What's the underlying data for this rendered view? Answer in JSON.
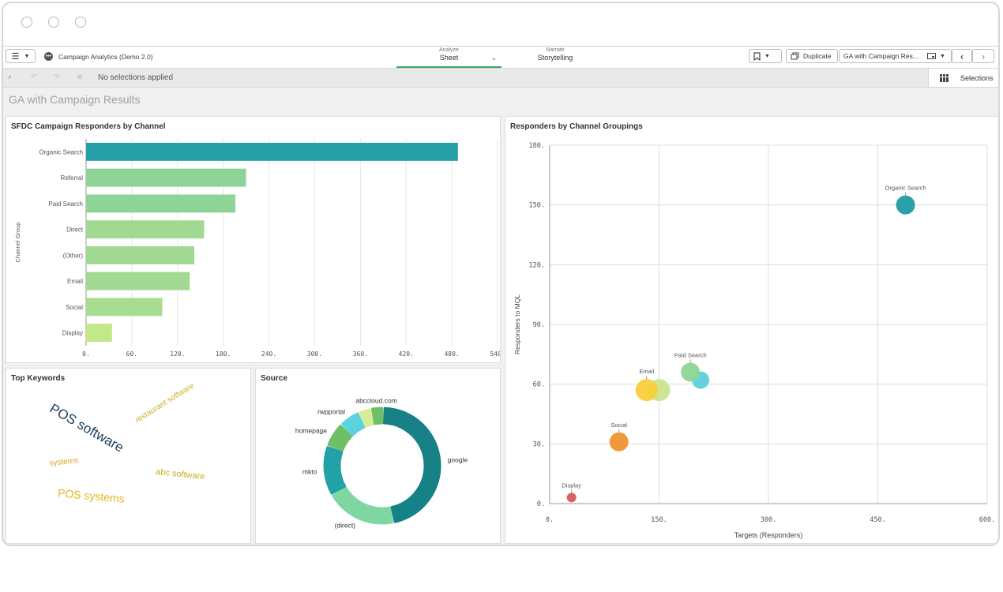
{
  "window": {
    "controls": [
      "close",
      "minimize",
      "maximize"
    ]
  },
  "toolbar": {
    "app_title": "Campaign Analytics (Demo 2.0)",
    "tabs": [
      {
        "small": "Analyze",
        "big": "Sheet"
      },
      {
        "small": "Narrate",
        "big": "Storytelling"
      }
    ],
    "duplicate_label": "Duplicate",
    "sheet_selector": "GA with Campaign Res..."
  },
  "selection_bar": {
    "status": "No selections applied",
    "selections_label": "Selections"
  },
  "sheet": {
    "title": "GA with Campaign Results"
  },
  "bar_panel": {
    "title": "SFDC Campaign Responders by Channel"
  },
  "scatter_panel": {
    "title": "Responders by Channel Groupings"
  },
  "keywords_panel": {
    "title": "Top Keywords"
  },
  "source_panel": {
    "title": "Source"
  },
  "chart_data": [
    {
      "type": "bar",
      "orientation": "horizontal",
      "title": "SFDC Campaign Responders by Channel",
      "ylabel": "Channel Group",
      "categories": [
        "Organic Search",
        "Referral",
        "Paid Search",
        "Direct",
        "(Other)",
        "Email",
        "Social",
        "Display"
      ],
      "values": [
        488,
        210,
        196,
        155,
        142,
        136,
        100,
        34
      ],
      "xlim": [
        0,
        540
      ],
      "xticks": [
        "0.",
        "60.",
        "120.",
        "180.",
        "240.",
        "300.",
        "360.",
        "420.",
        "480.",
        "540."
      ],
      "colors": [
        "#26a0a7",
        "#8ed497",
        "#8ed497",
        "#a2d992",
        "#a2d992",
        "#a2d992",
        "#a8dc8f",
        "#c2e88a"
      ],
      "grid": true
    },
    {
      "type": "scatter",
      "title": "Responders by Channel Groupings",
      "xlabel": "Targets (Responders)",
      "ylabel": "Responders to MQL",
      "xlim": [
        0,
        600
      ],
      "ylim": [
        0,
        180
      ],
      "xticks": [
        "0.",
        "150.",
        "300.",
        "450.",
        "600."
      ],
      "yticks": [
        "0.",
        "30.",
        "60.",
        "90.",
        "120.",
        "150.",
        "180."
      ],
      "grid": true,
      "points": [
        {
          "label": "",
          "x": 150,
          "y": 57,
          "size": 14,
          "color": "#c9e58c"
        },
        {
          "label": "Email",
          "x": 133,
          "y": 57,
          "size": 14,
          "color": "#f8cf3c"
        },
        {
          "label": "",
          "x": 207,
          "y": 62,
          "size": 11,
          "color": "#5cd0dc"
        },
        {
          "label": "Paid Search",
          "x": 193,
          "y": 66,
          "size": 12,
          "color": "#8ed497"
        },
        {
          "label": "Social",
          "x": 95,
          "y": 31,
          "size": 12,
          "color": "#f0932f"
        },
        {
          "label": "Display",
          "x": 30,
          "y": 3,
          "size": 6,
          "color": "#d55a5a"
        },
        {
          "label": "Organic Search",
          "x": 488,
          "y": 150,
          "size": 12,
          "color": "#1f9ca3"
        }
      ]
    },
    {
      "type": "pie",
      "style": "donut",
      "title": "Source",
      "slices": [
        {
          "label": "google",
          "value": 40,
          "color": "#168288"
        },
        {
          "label": "(direct)",
          "value": 17,
          "color": "#7ed7a0"
        },
        {
          "label": "mkto",
          "value": 12,
          "color": "#22a1a7"
        },
        {
          "label": "homepage",
          "value": 6,
          "color": "#6ebf67"
        },
        {
          "label": "rwpportal",
          "value": 5,
          "color": "#5ad3de"
        },
        {
          "label": "",
          "value": 3,
          "color": "#d7ec9a"
        },
        {
          "label": "abccloud.com",
          "value": 3,
          "color": "#6ebf67"
        }
      ]
    }
  ],
  "keywords": [
    {
      "text": "POS software",
      "color": "#173a5c",
      "size": 17,
      "rotate": 30
    },
    {
      "text": "restaurant software",
      "color": "#c8b42a",
      "size": 10,
      "rotate": -32
    },
    {
      "text": "systems",
      "color": "#d7a51d",
      "size": 10,
      "rotate": -6
    },
    {
      "text": "abc software",
      "color": "#c9ab1c",
      "size": 11,
      "rotate": 6
    },
    {
      "text": "POS systems",
      "color": "#e0b81d",
      "size": 14,
      "rotate": 5
    }
  ]
}
